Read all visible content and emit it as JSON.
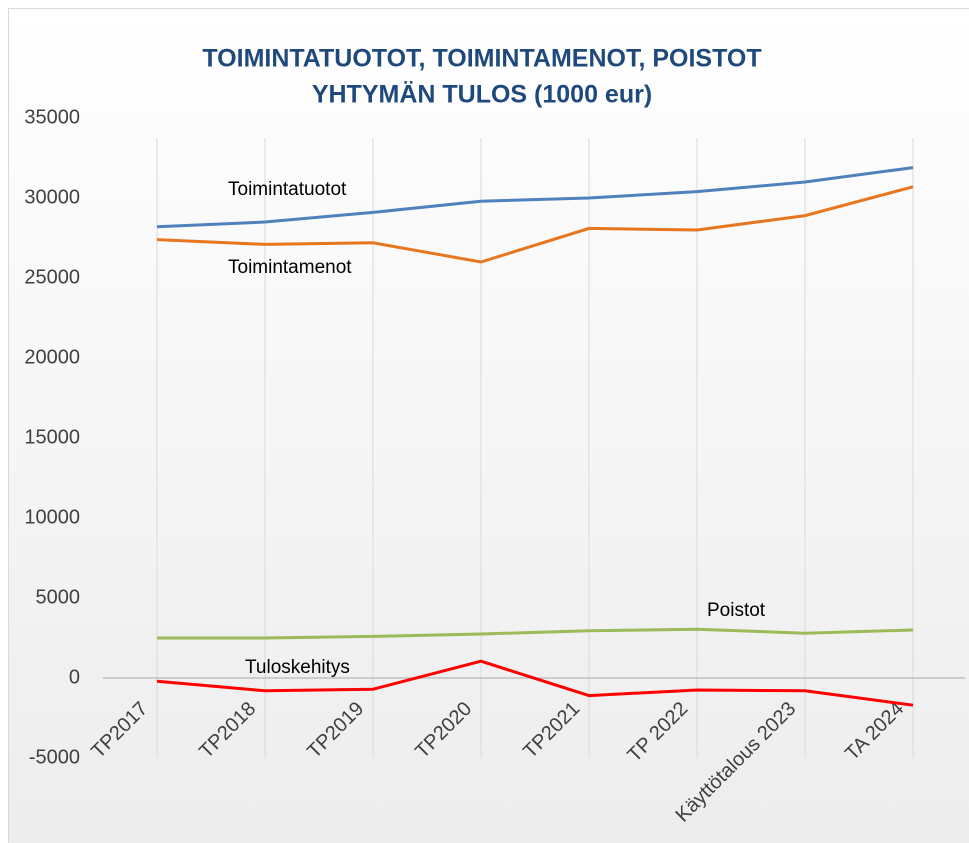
{
  "chart_data": {
    "type": "line",
    "title": "TOIMINTATUOTOT, TOIMINTAMENOT, POISTOT",
    "subtitle": "YHTYMÄN TULOS (1000 eur)",
    "categories": [
      "TP2017",
      "TP2018",
      "TP2019",
      "TP2020",
      "TP2021",
      "TP 2022",
      "Käyttötalous 2023",
      "TA 2024"
    ],
    "series": [
      {
        "name": "Toimintatuotot",
        "color": "#4f81bd",
        "values": [
          28200,
          28500,
          29100,
          29800,
          30000,
          30400,
          31000,
          31900
        ]
      },
      {
        "name": "Toimintamenot",
        "color": "#e8761e",
        "values": [
          27400,
          27100,
          27200,
          26000,
          28100,
          28000,
          28900,
          30700
        ]
      },
      {
        "name": "Poistot",
        "color": "#9bbb59",
        "values": [
          2500,
          2500,
          2600,
          2750,
          2950,
          3050,
          2800,
          3000
        ]
      },
      {
        "name": "Tuloskehitys",
        "color": "#ff0000",
        "values": [
          -200,
          -800,
          -700,
          1050,
          -1100,
          -750,
          -800,
          -1700
        ]
      }
    ],
    "ylim": [
      -5000,
      35000
    ],
    "yticks": [
      -5000,
      0,
      5000,
      10000,
      15000,
      20000,
      25000,
      30000,
      35000
    ]
  }
}
